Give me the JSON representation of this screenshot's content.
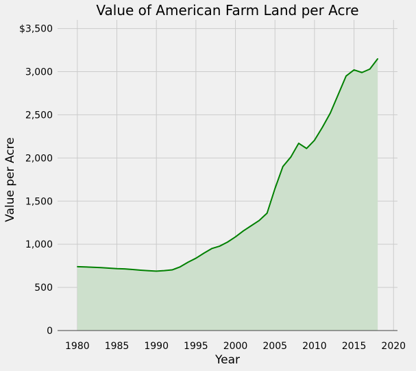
{
  "chart_data": {
    "type": "area",
    "title": "Value of American Farm Land per Acre",
    "xlabel": "Year",
    "ylabel": "Value per Acre",
    "xlim": [
      1977.5,
      2020.5
    ],
    "ylim": [
      0,
      3600
    ],
    "x_ticks": [
      1980,
      1985,
      1990,
      1995,
      2000,
      2005,
      2010,
      2015,
      2020
    ],
    "y_ticks": [
      0,
      500,
      1000,
      1500,
      2000,
      2500,
      3000,
      3500
    ],
    "y_tick_labels": [
      "0",
      "500",
      "1,000",
      "1,500",
      "2,000",
      "2,500",
      "3,000",
      "$3,500"
    ],
    "grid": true,
    "line_color": "#008000",
    "fill_color": "#cde0cc",
    "x": [
      1980,
      1981,
      1982,
      1983,
      1984,
      1985,
      1986,
      1987,
      1988,
      1989,
      1990,
      1991,
      1992,
      1993,
      1994,
      1995,
      1996,
      1997,
      1998,
      1999,
      2000,
      2001,
      2002,
      2003,
      2004,
      2005,
      2006,
      2007,
      2008,
      2009,
      2010,
      2011,
      2012,
      2013,
      2014,
      2015,
      2016,
      2017,
      2018
    ],
    "values": [
      740,
      737,
      733,
      729,
      723,
      717,
      714,
      707,
      699,
      693,
      688,
      694,
      703,
      738,
      792,
      838,
      896,
      950,
      978,
      1025,
      1085,
      1155,
      1215,
      1275,
      1360,
      1645,
      1900,
      2010,
      2170,
      2110,
      2205,
      2355,
      2520,
      2735,
      2950,
      3020,
      2990,
      3030,
      3150
    ]
  }
}
